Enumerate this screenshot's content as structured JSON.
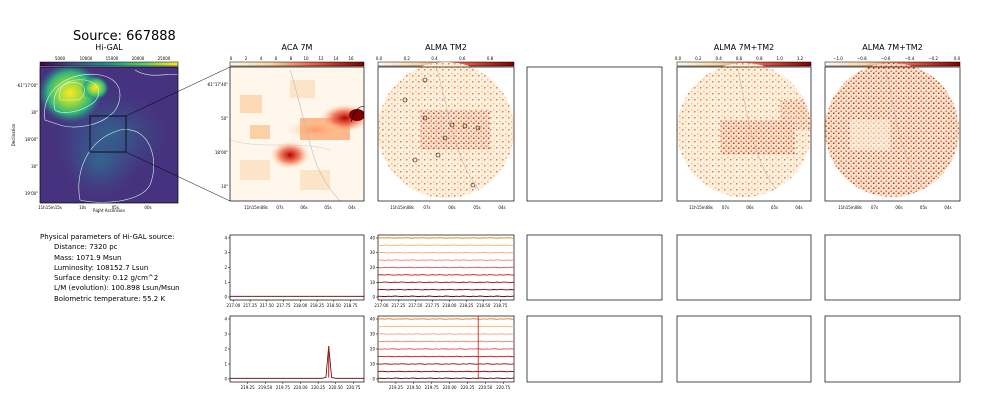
{
  "source_title": "Source: 667888",
  "panels": {
    "higal": {
      "title": "Hi-GAL",
      "xlabel": "Right Ascension",
      "ylabel": "Declination",
      "colorbar_ticks": [
        "5000",
        "10000",
        "15000",
        "20000",
        "25000"
      ],
      "xticks": [
        "11h15m15s",
        "10s",
        "05s",
        "00s"
      ],
      "yticks": [
        "-61°17'00\"",
        "30\"",
        "18'00\"",
        "30\"",
        "19'00\""
      ]
    },
    "aca7m": {
      "title": "ACA 7M",
      "colorbar_ticks": [
        "0",
        "2",
        "4",
        "6",
        "8",
        "10",
        "12",
        "14",
        "16"
      ],
      "xticks": [
        "11h15m08s",
        "07s",
        "06s",
        "05s",
        "04s"
      ],
      "yticks": [
        "-61°17'40\"",
        "50\"",
        "18'00\"",
        "10\""
      ]
    },
    "almatm2": {
      "title": "ALMA TM2",
      "colorbar_ticks": [
        "0.0",
        "0.2",
        "0.4",
        "0.6",
        "0.8"
      ],
      "xticks": [
        "11h15m08s",
        "07s",
        "06s",
        "05s",
        "04s"
      ]
    },
    "alma7mtm2": {
      "title": "ALMA 7M+TM2",
      "colorbar_ticks": [
        "0.0",
        "0.2",
        "0.4",
        "0.6",
        "0.8",
        "1.0",
        "1.2"
      ],
      "xticks": [
        "11h15m08s",
        "07s",
        "06s",
        "05s",
        "04s"
      ]
    },
    "alma7mtm2b": {
      "title": "ALMA 7M+TM2",
      "colorbar_ticks": [
        "−1.0",
        "−0.8",
        "−0.6",
        "−0.4",
        "−0.2",
        "0.0"
      ],
      "xticks": [
        "11h15m08s",
        "07s",
        "06s",
        "05s",
        "04s"
      ]
    }
  },
  "params": {
    "heading": "Physical parameters of Hi-GAL source:",
    "lines": [
      "Distance: 7320 pc",
      "Mass: 1071.9 Msun",
      "Luminosity: 108152.7 Lsun",
      "Surface density: 0.12 g/cm^2",
      "L/M (evolution): 100.898 Lsun/Msun",
      "Bolometric temperature: 55.2 K"
    ]
  },
  "colors": {
    "spectrum_line": "#5a0000",
    "spectrum_peak": "#c41212"
  },
  "chart_data": [
    {
      "type": "line",
      "panel": "aca7m-spectrum-1",
      "xticks": [
        "217.00",
        "217.25",
        "217.50",
        "217.75",
        "218.00",
        "218.25",
        "218.50",
        "218.75"
      ],
      "yticks": [
        "0",
        "1",
        "2",
        "3",
        "4"
      ],
      "xlim": [
        216.95,
        218.95
      ],
      "ylim": [
        -0.2,
        4.2
      ],
      "series": [
        {
          "x": [
            216.95,
            217.5,
            218.0,
            218.5,
            218.95
          ],
          "y": [
            0.05,
            0.05,
            0.05,
            0.05,
            0.05
          ]
        }
      ]
    },
    {
      "type": "line",
      "panel": "aca7m-spectrum-2",
      "xticks": [
        "219.25",
        "219.50",
        "219.75",
        "220.00",
        "220.25",
        "220.50",
        "220.75"
      ],
      "yticks": [
        "0",
        "1",
        "2",
        "3",
        "4"
      ],
      "xlim": [
        219.0,
        220.9
      ],
      "ylim": [
        -0.2,
        4.2
      ],
      "series": [
        {
          "x": [
            219.0,
            220.3,
            220.36,
            220.4,
            220.44,
            220.5,
            220.9
          ],
          "y": [
            0.05,
            0.05,
            0.1,
            2.2,
            0.1,
            0.05,
            0.05
          ]
        }
      ]
    },
    {
      "type": "line",
      "panel": "almatm2-spectrum-1",
      "xticks": [
        "217.00",
        "217.25",
        "217.50",
        "217.75",
        "218.00",
        "218.25",
        "218.50",
        "218.75"
      ],
      "yticks": [
        "0",
        "10",
        "20",
        "30",
        "40"
      ],
      "xlim": [
        216.95,
        218.95
      ],
      "ylim": [
        -2,
        42
      ],
      "series": [
        {
          "y": [
            0.5,
            5,
            10,
            15,
            20,
            25,
            30,
            35,
            40
          ]
        }
      ]
    },
    {
      "type": "line",
      "panel": "almatm2-spectrum-2",
      "xticks": [
        "219.25",
        "219.50",
        "219.75",
        "220.00",
        "220.25",
        "220.50",
        "220.75"
      ],
      "yticks": [
        "0",
        "10",
        "20",
        "30",
        "40"
      ],
      "xlim": [
        219.0,
        220.9
      ],
      "ylim": [
        -2,
        42
      ],
      "series": [
        {
          "y": [
            0.5,
            5,
            10,
            15,
            20,
            25,
            30,
            35,
            40
          ],
          "peak_x": 220.4
        }
      ]
    }
  ]
}
